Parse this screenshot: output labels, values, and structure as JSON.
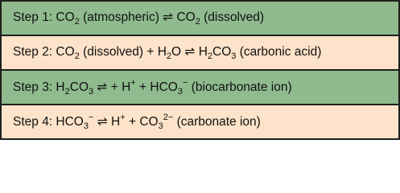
{
  "table": {
    "rows": [
      {
        "parts": [
          {
            "text": "Step 1: CO"
          },
          {
            "text": "2",
            "pos": "sub"
          },
          {
            "text": " (atmospheric) ⇌ CO"
          },
          {
            "text": "2",
            "pos": "sub"
          },
          {
            "text": " (dissolved)"
          }
        ]
      },
      {
        "parts": [
          {
            "text": "Step 2: CO"
          },
          {
            "text": "2",
            "pos": "sub"
          },
          {
            "text": " (dissolved) + H"
          },
          {
            "text": "2",
            "pos": "sub"
          },
          {
            "text": "O ⇌ H"
          },
          {
            "text": "2",
            "pos": "sub"
          },
          {
            "text": "CO"
          },
          {
            "text": "3",
            "pos": "sub"
          },
          {
            "text": " (carbonic acid)"
          }
        ]
      },
      {
        "parts": [
          {
            "text": "Step 3: H"
          },
          {
            "text": "2",
            "pos": "sub"
          },
          {
            "text": "CO"
          },
          {
            "text": "3",
            "pos": "sub"
          },
          {
            "text": " ⇌ + H"
          },
          {
            "text": "+",
            "pos": "sup"
          },
          {
            "text": " + HCO"
          },
          {
            "text": "3",
            "pos": "sub"
          },
          {
            "text": "−",
            "pos": "sup"
          },
          {
            "text": " (biocarbonate ion)"
          }
        ]
      },
      {
        "parts": [
          {
            "text": "Step 4: HCO"
          },
          {
            "text": "3",
            "pos": "sub"
          },
          {
            "text": "−",
            "pos": "sup"
          },
          {
            "text": " ⇌ H"
          },
          {
            "text": "+",
            "pos": "sup"
          },
          {
            "text": " + CO"
          },
          {
            "text": "3",
            "pos": "sub"
          },
          {
            "text": "2−",
            "pos": "sup"
          },
          {
            "text": " (carbonate ion)"
          }
        ]
      }
    ]
  }
}
